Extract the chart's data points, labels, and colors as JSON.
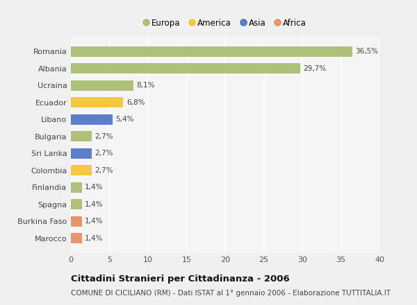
{
  "countries": [
    "Romania",
    "Albania",
    "Ucraina",
    "Ecuador",
    "Libano",
    "Bulgaria",
    "Sri Lanka",
    "Colombia",
    "Finlandia",
    "Spagna",
    "Burkina Faso",
    "Marocco"
  ],
  "values": [
    36.5,
    29.7,
    8.1,
    6.8,
    5.4,
    2.7,
    2.7,
    2.7,
    1.4,
    1.4,
    1.4,
    1.4
  ],
  "labels": [
    "36,5%",
    "29,7%",
    "8,1%",
    "6,8%",
    "5,4%",
    "2,7%",
    "2,7%",
    "2,7%",
    "1,4%",
    "1,4%",
    "1,4%",
    "1,4%"
  ],
  "regions": [
    "Europa",
    "Europa",
    "Europa",
    "America",
    "Asia",
    "Europa",
    "Asia",
    "America",
    "Europa",
    "Europa",
    "Africa",
    "Africa"
  ],
  "colors": {
    "Europa": "#adc178",
    "America": "#f5c842",
    "Asia": "#5b7ec9",
    "Africa": "#e8956d"
  },
  "legend_order": [
    "Europa",
    "America",
    "Asia",
    "Africa"
  ],
  "xlim": [
    0,
    40
  ],
  "xticks": [
    0,
    5,
    10,
    15,
    20,
    25,
    30,
    35,
    40
  ],
  "title": "Cittadini Stranieri per Cittadinanza - 2006",
  "subtitle": "COMUNE DI CICILIANO (RM) - Dati ISTAT al 1° gennaio 2006 - Elaborazione TUTTITALIA.IT",
  "bg_color": "#f0f0f0",
  "plot_bg_color": "#f5f5f5",
  "grid_color": "#ffffff",
  "bar_height": 0.6,
  "label_fontsize": 7.5,
  "ytick_fontsize": 8,
  "xtick_fontsize": 8,
  "title_fontsize": 9.5,
  "subtitle_fontsize": 7.5,
  "legend_fontsize": 8.5
}
